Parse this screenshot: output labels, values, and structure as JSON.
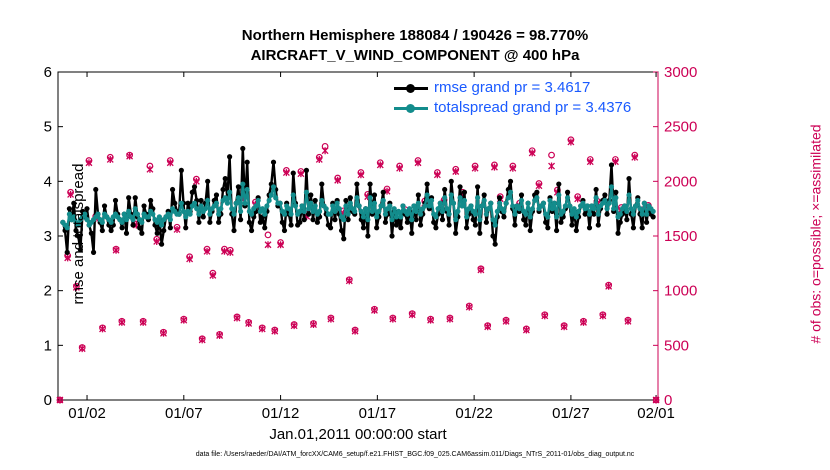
{
  "title": {
    "line1": "Northern Hemisphere 188084 / 190426 = 98.770%",
    "line2": "AIRCRAFT_V_WIND_COMPONENT @ 400 hPa"
  },
  "axes": {
    "left_label": "rmse and totalspread",
    "right_label": "# of obs: o=possible; ×=assimilated",
    "x_start_label": "Jan.01,2011 00:00:00 start",
    "footnote": "data file: /Users/raeder/DAI/ATM_forcXX/CAM6_setup/f.e21.FHIST_BGC.f09_025.CAM6assim.011/Diags_NTrS_2011-01/obs_diag_output.nc"
  },
  "legend": {
    "rmse": "rmse grand pr = 3.4617",
    "spread": "totalspread grand pr = 3.4376"
  },
  "colors": {
    "rmse": "#000000",
    "spread": "#138c8c",
    "obs": "#cc0055",
    "legend_text": "#1a5aff"
  },
  "chart_data": {
    "type": "line",
    "x_range": [
      0.5,
      31.5
    ],
    "x_ticks": [
      {
        "x": 2,
        "label": "01/02"
      },
      {
        "x": 7,
        "label": "01/07"
      },
      {
        "x": 12,
        "label": "01/12"
      },
      {
        "x": 17,
        "label": "01/17"
      },
      {
        "x": 22,
        "label": "01/22"
      },
      {
        "x": 27,
        "label": "01/27"
      },
      {
        "x": 31.4,
        "label": "02/01"
      }
    ],
    "y_left": {
      "range": [
        0,
        6
      ],
      "ticks": [
        0,
        1,
        2,
        3,
        4,
        5,
        6
      ]
    },
    "y_right": {
      "range": [
        0,
        3000
      ],
      "ticks": [
        0,
        500,
        1000,
        1500,
        2000,
        2500,
        3000
      ]
    },
    "rmse": [
      3.25,
      3.1,
      2.7,
      3.5,
      3.3,
      3.6,
      3.1,
      3.0,
      2.75,
      3.45,
      3.35,
      3.5,
      3.2,
      3.05,
      2.7,
      3.85,
      3.4,
      3.25,
      3.1,
      3.55,
      3.35,
      3.2,
      3.1,
      3.2,
      3.65,
      3.4,
      3.3,
      3.15,
      3.4,
      3.05,
      3.7,
      3.4,
      3.2,
      3.7,
      3.35,
      3.15,
      3.05,
      3.55,
      3.4,
      3.3,
      3.65,
      3.5,
      3.2,
      3.05,
      3.3,
      2.85,
      3.1,
      3.35,
      3.45,
      3.15,
      3.85,
      3.6,
      3.45,
      3.4,
      4.2,
      3.6,
      3.15,
      3.6,
      3.45,
      3.8,
      3.9,
      3.65,
      3.25,
      3.65,
      3.35,
      3.6,
      4.0,
      3.25,
      3.45,
      3.65,
      3.75,
      3.25,
      3.4,
      3.85,
      4.05,
      3.7,
      4.45,
      3.4,
      3.1,
      3.6,
      3.9,
      3.3,
      4.6,
      3.55,
      4.35,
      3.25,
      3.1,
      3.35,
      3.45,
      3.7,
      3.25,
      3.35,
      3.15,
      3.45,
      3.75,
      3.95,
      4.35,
      3.85,
      3.55,
      3.6,
      3.25,
      3.1,
      3.6,
      3.4,
      3.2,
      4.15,
      3.6,
      3.2,
      3.25,
      3.55,
      3.3,
      4.2,
      3.4,
      3.75,
      3.3,
      3.65,
      3.25,
      3.35,
      3.95,
      3.55,
      3.4,
      3.2,
      3.15,
      3.6,
      3.3,
      3.65,
      3.4,
      3.1,
      2.95,
      3.65,
      3.3,
      3.7,
      3.45,
      3.4,
      3.95,
      3.55,
      3.3,
      3.15,
      3.5,
      3.0,
      3.95,
      3.4,
      3.75,
      3.15,
      3.35,
      3.55,
      3.8,
      3.25,
      3.4,
      3.6,
      3.0,
      3.45,
      3.2,
      3.3,
      3.15,
      3.55,
      3.4,
      3.25,
      3.45,
      3.05,
      3.55,
      3.3,
      3.75,
      3.2,
      3.4,
      3.6,
      3.95,
      3.5,
      3.7,
      3.25,
      3.15,
      3.4,
      3.6,
      3.3,
      3.85,
      3.45,
      3.2,
      4.0,
      3.6,
      3.05,
      3.35,
      3.9,
      3.55,
      3.8,
      3.15,
      3.4,
      3.55,
      3.3,
      3.2,
      3.9,
      3.05,
      3.55,
      3.75,
      3.25,
      3.5,
      3.6,
      3.0,
      2.85,
      3.35,
      3.7,
      3.45,
      3.35,
      3.6,
      3.85,
      4.0,
      3.5,
      3.2,
      3.55,
      3.45,
      3.75,
      3.3,
      3.2,
      3.6,
      3.1,
      3.45,
      3.75,
      3.8,
      3.45,
      3.55,
      3.6,
      3.25,
      3.15,
      3.7,
      3.45,
      3.6,
      3.1,
      3.95,
      3.25,
      3.35,
      3.5,
      3.8,
      3.55,
      3.2,
      3.45,
      3.1,
      3.35,
      3.55,
      3.65,
      3.4,
      3.55,
      3.15,
      3.55,
      3.4,
      3.85,
      3.2,
      3.5,
      3.65,
      3.75,
      3.4,
      3.65,
      4.3,
      3.45,
      3.8,
      3.05,
      3.25,
      3.4,
      3.55,
      3.3,
      4.05,
      3.4,
      3.15,
      3.55,
      3.7,
      3.4,
      3.15,
      3.6,
      3.25,
      3.55,
      3.4,
      3.35
    ],
    "spread": [
      3.25,
      3.2,
      3.15,
      3.4,
      3.3,
      3.35,
      3.25,
      3.2,
      3.3,
      3.35,
      3.4,
      3.3,
      3.2,
      3.25,
      3.3,
      3.35,
      3.4,
      3.3,
      3.25,
      3.4,
      3.35,
      3.3,
      3.25,
      3.35,
      3.4,
      3.35,
      3.3,
      3.25,
      3.4,
      3.3,
      3.45,
      3.35,
      3.3,
      3.5,
      3.4,
      3.3,
      3.25,
      3.4,
      3.35,
      3.35,
      3.45,
      3.4,
      3.3,
      3.25,
      3.35,
      3.2,
      3.3,
      3.35,
      3.4,
      3.3,
      3.5,
      3.45,
      3.4,
      3.4,
      3.6,
      3.45,
      3.35,
      3.45,
      3.4,
      3.55,
      3.6,
      3.5,
      3.4,
      3.55,
      3.45,
      3.5,
      3.65,
      3.4,
      3.5,
      3.55,
      3.6,
      3.4,
      3.5,
      3.65,
      3.7,
      3.6,
      3.8,
      3.5,
      3.4,
      3.6,
      3.7,
      3.45,
      3.95,
      3.6,
      3.85,
      3.45,
      3.4,
      3.5,
      3.55,
      3.65,
      3.45,
      3.5,
      3.4,
      3.55,
      3.65,
      3.75,
      3.9,
      3.7,
      3.6,
      3.6,
      3.45,
      3.4,
      3.55,
      3.5,
      3.4,
      3.75,
      3.55,
      3.4,
      3.45,
      3.55,
      3.45,
      3.8,
      3.5,
      3.6,
      3.45,
      3.55,
      3.4,
      3.45,
      3.65,
      3.55,
      3.5,
      3.4,
      3.4,
      3.55,
      3.45,
      3.6,
      3.5,
      3.35,
      3.3,
      3.55,
      3.4,
      3.6,
      3.5,
      3.45,
      3.7,
      3.55,
      3.45,
      3.35,
      3.5,
      3.3,
      3.7,
      3.45,
      3.6,
      3.35,
      3.45,
      3.55,
      3.65,
      3.4,
      3.5,
      3.55,
      3.3,
      3.5,
      3.35,
      3.45,
      3.35,
      3.55,
      3.45,
      3.4,
      3.5,
      3.3,
      3.55,
      3.45,
      3.6,
      3.4,
      3.5,
      3.55,
      3.75,
      3.55,
      3.65,
      3.4,
      3.35,
      3.5,
      3.6,
      3.45,
      3.7,
      3.5,
      3.4,
      3.75,
      3.6,
      3.3,
      3.45,
      3.7,
      3.55,
      3.65,
      3.35,
      3.5,
      3.55,
      3.45,
      3.4,
      3.7,
      3.3,
      3.55,
      3.65,
      3.4,
      3.5,
      3.6,
      3.3,
      3.2,
      3.45,
      3.6,
      3.5,
      3.45,
      3.6,
      3.7,
      3.8,
      3.55,
      3.4,
      3.55,
      3.5,
      3.65,
      3.45,
      3.4,
      3.6,
      3.35,
      3.5,
      3.65,
      3.7,
      3.5,
      3.55,
      3.6,
      3.4,
      3.35,
      3.65,
      3.5,
      3.6,
      3.35,
      3.75,
      3.4,
      3.45,
      3.55,
      3.7,
      3.55,
      3.4,
      3.5,
      3.35,
      3.45,
      3.55,
      3.6,
      3.5,
      3.55,
      3.4,
      3.55,
      3.5,
      3.7,
      3.4,
      3.55,
      3.6,
      3.65,
      3.5,
      3.6,
      3.9,
      3.5,
      3.7,
      3.35,
      3.4,
      3.5,
      3.55,
      3.45,
      3.75,
      3.5,
      3.4,
      3.55,
      3.65,
      3.5,
      3.4,
      3.6,
      3.4,
      3.55,
      3.5,
      3.45
    ],
    "obs_possible": [
      {
        "x": 0.6,
        "y": 0
      },
      {
        "x": 1.0,
        "y": 1320
      },
      {
        "x": 1.15,
        "y": 1900
      },
      {
        "x": 1.45,
        "y": 1040
      },
      {
        "x": 1.75,
        "y": 480
      },
      {
        "x": 2.1,
        "y": 2190
      },
      {
        "x": 2.45,
        "y": 1680
      },
      {
        "x": 2.8,
        "y": 660
      },
      {
        "x": 3.2,
        "y": 2220
      },
      {
        "x": 3.5,
        "y": 1380
      },
      {
        "x": 3.8,
        "y": 720
      },
      {
        "x": 4.2,
        "y": 2240
      },
      {
        "x": 4.55,
        "y": 1610
      },
      {
        "x": 4.9,
        "y": 720
      },
      {
        "x": 5.25,
        "y": 2140
      },
      {
        "x": 5.6,
        "y": 1470
      },
      {
        "x": 5.95,
        "y": 620
      },
      {
        "x": 6.3,
        "y": 2190
      },
      {
        "x": 6.65,
        "y": 1580
      },
      {
        "x": 7.0,
        "y": 740
      },
      {
        "x": 7.3,
        "y": 1310
      },
      {
        "x": 7.65,
        "y": 2020
      },
      {
        "x": 7.95,
        "y": 560
      },
      {
        "x": 8.2,
        "y": 1380
      },
      {
        "x": 8.5,
        "y": 1160
      },
      {
        "x": 8.85,
        "y": 600
      },
      {
        "x": 9.1,
        "y": 1380
      },
      {
        "x": 9.4,
        "y": 1370
      },
      {
        "x": 9.75,
        "y": 760
      },
      {
        "x": 10.05,
        "y": 1870
      },
      {
        "x": 10.35,
        "y": 710
      },
      {
        "x": 10.7,
        "y": 1810
      },
      {
        "x": 11.05,
        "y": 660
      },
      {
        "x": 11.35,
        "y": 1510
      },
      {
        "x": 11.7,
        "y": 640
      },
      {
        "x": 12.0,
        "y": 1440
      },
      {
        "x": 12.3,
        "y": 2100
      },
      {
        "x": 12.7,
        "y": 690
      },
      {
        "x": 13.05,
        "y": 2090
      },
      {
        "x": 13.35,
        "y": 1700
      },
      {
        "x": 13.7,
        "y": 700
      },
      {
        "x": 14.0,
        "y": 2220
      },
      {
        "x": 14.3,
        "y": 2320
      },
      {
        "x": 14.6,
        "y": 750
      },
      {
        "x": 14.95,
        "y": 2030
      },
      {
        "x": 15.25,
        "y": 1730
      },
      {
        "x": 15.55,
        "y": 1100
      },
      {
        "x": 15.85,
        "y": 640
      },
      {
        "x": 16.15,
        "y": 2080
      },
      {
        "x": 16.5,
        "y": 1880
      },
      {
        "x": 16.85,
        "y": 830
      },
      {
        "x": 17.15,
        "y": 2170
      },
      {
        "x": 17.5,
        "y": 1930
      },
      {
        "x": 17.8,
        "y": 750
      },
      {
        "x": 18.15,
        "y": 2140
      },
      {
        "x": 18.45,
        "y": 1740
      },
      {
        "x": 18.8,
        "y": 790
      },
      {
        "x": 19.1,
        "y": 2190
      },
      {
        "x": 19.45,
        "y": 1820
      },
      {
        "x": 19.75,
        "y": 740
      },
      {
        "x": 20.1,
        "y": 2080
      },
      {
        "x": 20.45,
        "y": 1830
      },
      {
        "x": 20.75,
        "y": 750
      },
      {
        "x": 21.05,
        "y": 2110
      },
      {
        "x": 21.4,
        "y": 1900
      },
      {
        "x": 21.75,
        "y": 860
      },
      {
        "x": 22.05,
        "y": 2140
      },
      {
        "x": 22.35,
        "y": 1200
      },
      {
        "x": 22.7,
        "y": 680
      },
      {
        "x": 23.05,
        "y": 2150
      },
      {
        "x": 23.35,
        "y": 1860
      },
      {
        "x": 23.65,
        "y": 730
      },
      {
        "x": 24.0,
        "y": 2140
      },
      {
        "x": 24.35,
        "y": 1800
      },
      {
        "x": 24.7,
        "y": 650
      },
      {
        "x": 25.0,
        "y": 2280
      },
      {
        "x": 25.35,
        "y": 1980
      },
      {
        "x": 25.65,
        "y": 780
      },
      {
        "x": 26.0,
        "y": 2240
      },
      {
        "x": 26.3,
        "y": 1920
      },
      {
        "x": 26.65,
        "y": 680
      },
      {
        "x": 27.0,
        "y": 2380
      },
      {
        "x": 27.35,
        "y": 1860
      },
      {
        "x": 27.65,
        "y": 720
      },
      {
        "x": 28.0,
        "y": 2200
      },
      {
        "x": 28.35,
        "y": 1820
      },
      {
        "x": 28.65,
        "y": 780
      },
      {
        "x": 28.95,
        "y": 1050
      },
      {
        "x": 29.3,
        "y": 2200
      },
      {
        "x": 29.6,
        "y": 1760
      },
      {
        "x": 29.95,
        "y": 730
      },
      {
        "x": 30.3,
        "y": 2240
      },
      {
        "x": 30.65,
        "y": 1740
      },
      {
        "x": 31.0,
        "y": 1780
      },
      {
        "x": 31.4,
        "y": 0
      }
    ],
    "obs_assimilated": [
      {
        "x": 0.6,
        "y": 0
      },
      {
        "x": 1.0,
        "y": 1300
      },
      {
        "x": 1.15,
        "y": 1880
      },
      {
        "x": 1.45,
        "y": 1030
      },
      {
        "x": 1.75,
        "y": 470
      },
      {
        "x": 2.1,
        "y": 2170
      },
      {
        "x": 2.45,
        "y": 1660
      },
      {
        "x": 2.8,
        "y": 650
      },
      {
        "x": 3.2,
        "y": 2200
      },
      {
        "x": 3.5,
        "y": 1370
      },
      {
        "x": 3.8,
        "y": 710
      },
      {
        "x": 4.2,
        "y": 2230
      },
      {
        "x": 4.55,
        "y": 1600
      },
      {
        "x": 4.9,
        "y": 710
      },
      {
        "x": 5.25,
        "y": 2110
      },
      {
        "x": 5.6,
        "y": 1450
      },
      {
        "x": 5.95,
        "y": 610
      },
      {
        "x": 6.3,
        "y": 2170
      },
      {
        "x": 6.65,
        "y": 1560
      },
      {
        "x": 7.0,
        "y": 730
      },
      {
        "x": 7.3,
        "y": 1290
      },
      {
        "x": 7.65,
        "y": 2000
      },
      {
        "x": 7.95,
        "y": 550
      },
      {
        "x": 8.2,
        "y": 1360
      },
      {
        "x": 8.5,
        "y": 1140
      },
      {
        "x": 8.85,
        "y": 590
      },
      {
        "x": 9.1,
        "y": 1360
      },
      {
        "x": 9.4,
        "y": 1350
      },
      {
        "x": 9.75,
        "y": 750
      },
      {
        "x": 10.05,
        "y": 1850
      },
      {
        "x": 10.35,
        "y": 700
      },
      {
        "x": 10.7,
        "y": 1790
      },
      {
        "x": 11.05,
        "y": 650
      },
      {
        "x": 11.35,
        "y": 1420
      },
      {
        "x": 11.7,
        "y": 630
      },
      {
        "x": 12.0,
        "y": 1420
      },
      {
        "x": 12.3,
        "y": 2080
      },
      {
        "x": 12.7,
        "y": 680
      },
      {
        "x": 13.05,
        "y": 2070
      },
      {
        "x": 13.35,
        "y": 1680
      },
      {
        "x": 13.7,
        "y": 690
      },
      {
        "x": 14.0,
        "y": 2200
      },
      {
        "x": 14.3,
        "y": 2280
      },
      {
        "x": 14.6,
        "y": 740
      },
      {
        "x": 14.95,
        "y": 2010
      },
      {
        "x": 15.25,
        "y": 1710
      },
      {
        "x": 15.55,
        "y": 1090
      },
      {
        "x": 15.85,
        "y": 630
      },
      {
        "x": 16.15,
        "y": 2060
      },
      {
        "x": 16.5,
        "y": 1860
      },
      {
        "x": 16.85,
        "y": 820
      },
      {
        "x": 17.15,
        "y": 2150
      },
      {
        "x": 17.5,
        "y": 1910
      },
      {
        "x": 17.8,
        "y": 740
      },
      {
        "x": 18.15,
        "y": 2120
      },
      {
        "x": 18.45,
        "y": 1720
      },
      {
        "x": 18.8,
        "y": 780
      },
      {
        "x": 19.1,
        "y": 2170
      },
      {
        "x": 19.45,
        "y": 1800
      },
      {
        "x": 19.75,
        "y": 730
      },
      {
        "x": 20.1,
        "y": 2060
      },
      {
        "x": 20.45,
        "y": 1810
      },
      {
        "x": 20.75,
        "y": 740
      },
      {
        "x": 21.05,
        "y": 2090
      },
      {
        "x": 21.4,
        "y": 1880
      },
      {
        "x": 21.75,
        "y": 850
      },
      {
        "x": 22.05,
        "y": 2120
      },
      {
        "x": 22.35,
        "y": 1190
      },
      {
        "x": 22.7,
        "y": 670
      },
      {
        "x": 23.05,
        "y": 2130
      },
      {
        "x": 23.35,
        "y": 1840
      },
      {
        "x": 23.65,
        "y": 720
      },
      {
        "x": 24.0,
        "y": 2120
      },
      {
        "x": 24.35,
        "y": 1780
      },
      {
        "x": 24.7,
        "y": 640
      },
      {
        "x": 25.0,
        "y": 2260
      },
      {
        "x": 25.35,
        "y": 1960
      },
      {
        "x": 25.65,
        "y": 770
      },
      {
        "x": 26.0,
        "y": 2140
      },
      {
        "x": 26.3,
        "y": 1900
      },
      {
        "x": 26.65,
        "y": 670
      },
      {
        "x": 27.0,
        "y": 2360
      },
      {
        "x": 27.35,
        "y": 1840
      },
      {
        "x": 27.65,
        "y": 710
      },
      {
        "x": 28.0,
        "y": 2180
      },
      {
        "x": 28.35,
        "y": 1800
      },
      {
        "x": 28.65,
        "y": 770
      },
      {
        "x": 28.95,
        "y": 1040
      },
      {
        "x": 29.3,
        "y": 2180
      },
      {
        "x": 29.6,
        "y": 1740
      },
      {
        "x": 29.95,
        "y": 720
      },
      {
        "x": 30.3,
        "y": 2220
      },
      {
        "x": 30.65,
        "y": 1720
      },
      {
        "x": 31.0,
        "y": 1760
      },
      {
        "x": 31.4,
        "y": 0
      }
    ]
  }
}
